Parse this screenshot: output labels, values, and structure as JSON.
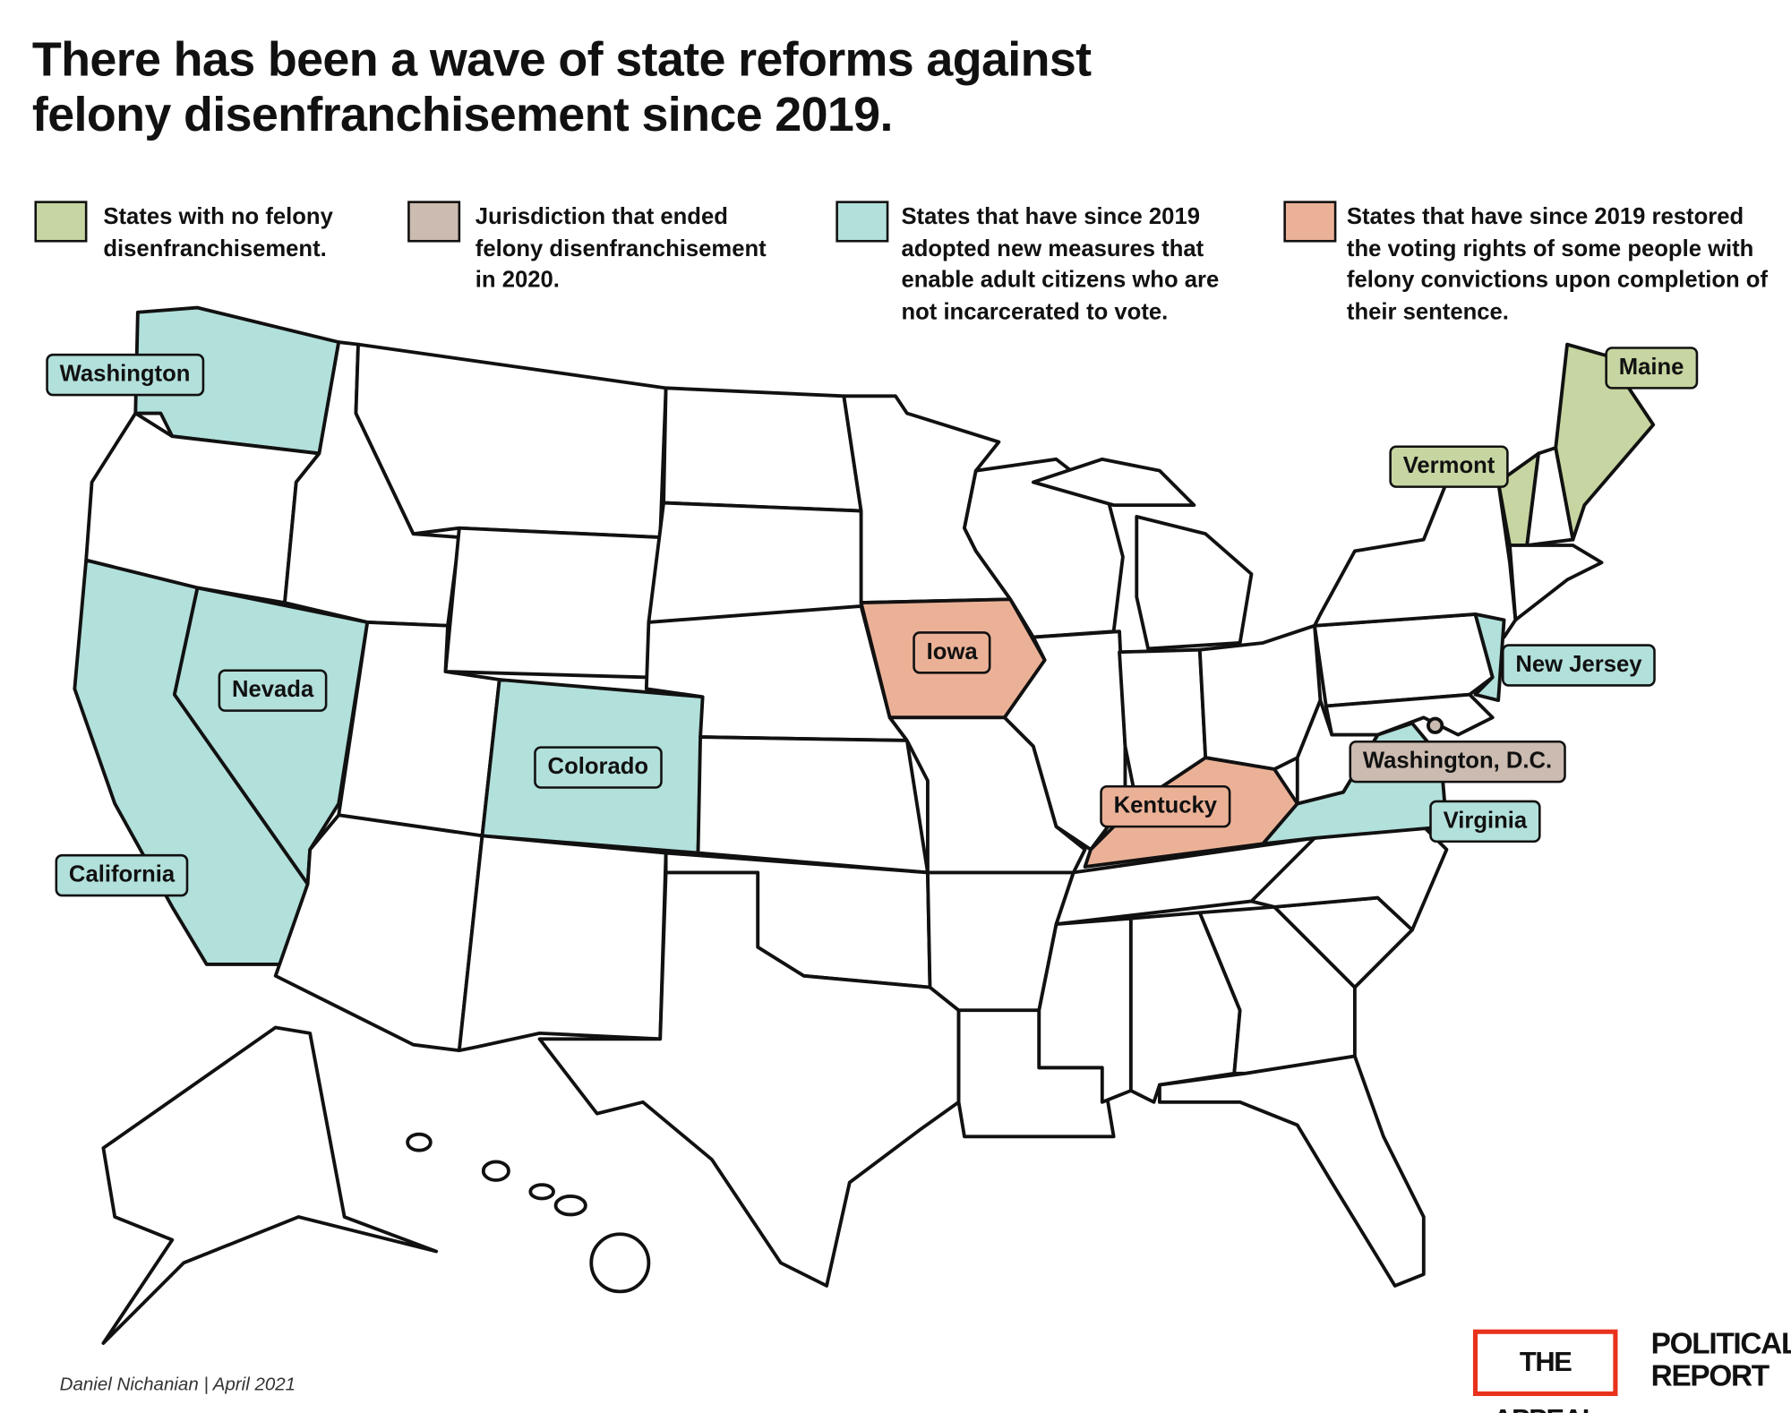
{
  "title": "There has been a wave of state reforms against felony disenfranchisement since 2019.",
  "legend": [
    {
      "color": "#c6d5a1",
      "label": "States with no felony disenfranchisement.",
      "states": [
        "Vermont",
        "Maine"
      ]
    },
    {
      "color": "#cbbbb0",
      "label": "Jurisdiction that ended felony disenfranchisement in 2020.",
      "states": [
        "Washington, D.C."
      ]
    },
    {
      "color": "#b2e0db",
      "label": "States that have since 2019 adopted new measures that enable adult citizens who are not incarcerated to vote.",
      "states": [
        "Washington",
        "Nevada",
        "Colorado",
        "California",
        "New Jersey",
        "Virginia"
      ]
    },
    {
      "color": "#ebb197",
      "label": "States that have since 2019 restored the voting rights of some people with felony convictions upon completion of their sentence.",
      "states": [
        "Iowa",
        "Kentucky"
      ]
    }
  ],
  "credit": "Daniel Nichanian | April 2021",
  "logos": [
    "THE APPEAL",
    "POLITICAL REPORT"
  ]
}
